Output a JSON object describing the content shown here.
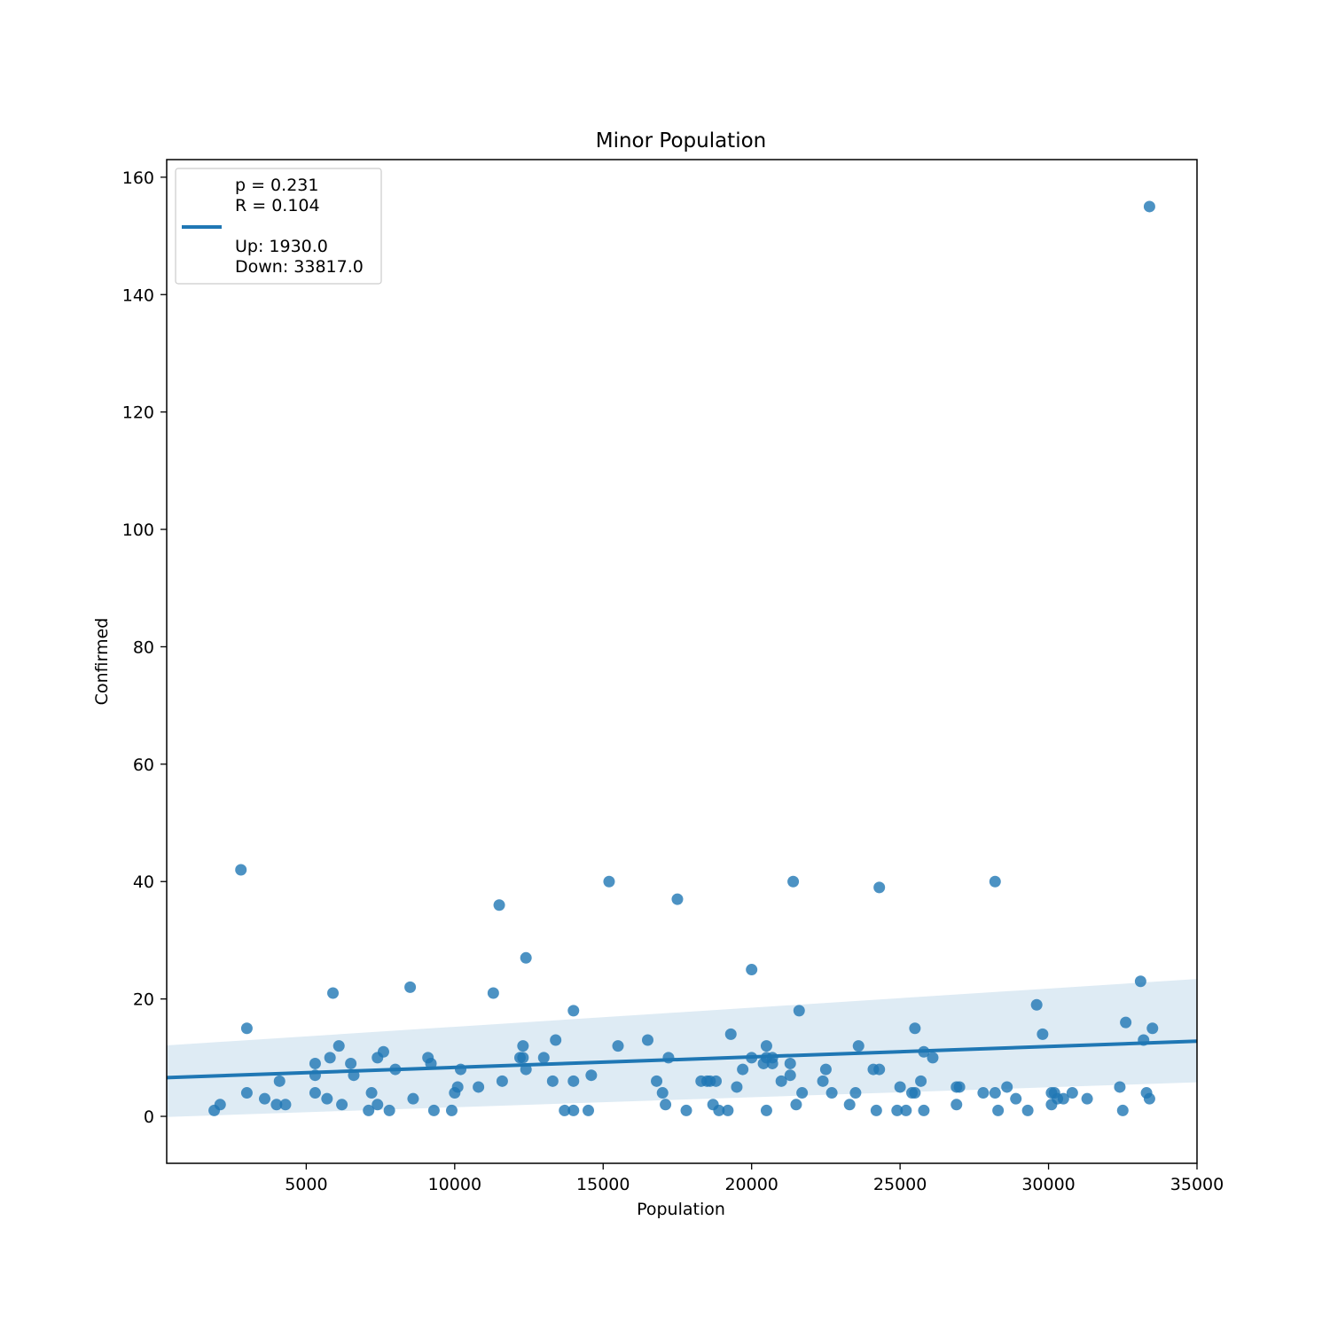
{
  "chart_data": {
    "type": "scatter",
    "title": "Minor Population",
    "xlabel": "Population",
    "ylabel": "Confirmed",
    "xlim": [
      300,
      35000
    ],
    "ylim": [
      -8,
      163
    ],
    "xticks": [
      5000,
      10000,
      15000,
      20000,
      25000,
      30000,
      35000
    ],
    "yticks": [
      0,
      20,
      40,
      60,
      80,
      100,
      120,
      140,
      160
    ],
    "grid": false,
    "legend": {
      "placement": "upper-left",
      "lines": [
        "p = 0.231",
        "R = 0.104",
        "",
        "Up: 1930.0",
        "Down: 33817.0"
      ]
    },
    "colors": {
      "points": "#1f77b4",
      "line": "#1f77b4",
      "band": "#1f77b4"
    },
    "regression": {
      "x": [
        300,
        35000
      ],
      "y": [
        6.6,
        12.8
      ]
    },
    "confidence_band": {
      "x": [
        300,
        35000
      ],
      "lower": [
        -0.1,
        5.8
      ],
      "upper": [
        12.1,
        23.4
      ]
    },
    "points": {
      "x": [
        1900,
        2100,
        2800,
        3000,
        3000,
        3600,
        4000,
        4100,
        4300,
        5300,
        5300,
        5300,
        5700,
        5800,
        5900,
        6100,
        6200,
        6500,
        6600,
        7100,
        7200,
        7400,
        7400,
        7600,
        7800,
        8000,
        8500,
        8600,
        9100,
        9200,
        9300,
        9900,
        10000,
        10100,
        10200,
        10800,
        11300,
        11500,
        11600,
        12200,
        12300,
        12300,
        12400,
        12400,
        13000,
        13300,
        13400,
        13700,
        14000,
        14000,
        14000,
        14500,
        14600,
        15200,
        15500,
        16500,
        16800,
        17000,
        17100,
        17200,
        17500,
        17800,
        18300,
        18500,
        18600,
        18700,
        18800,
        18900,
        19200,
        19300,
        19500,
        19700,
        20000,
        20000,
        20400,
        20500,
        20500,
        20500,
        20700,
        20700,
        21000,
        21300,
        21300,
        21400,
        21500,
        21600,
        21700,
        22400,
        22500,
        22700,
        23300,
        23500,
        23600,
        24100,
        24200,
        24300,
        24300,
        24900,
        25000,
        25200,
        25400,
        25500,
        25500,
        25700,
        25800,
        25800,
        26100,
        26900,
        26900,
        27000,
        27800,
        28200,
        28200,
        28300,
        28600,
        28900,
        29300,
        29600,
        29800,
        30100,
        30100,
        30200,
        30300,
        30500,
        30800,
        31300,
        32400,
        32500,
        32600,
        33100,
        33200,
        33300,
        33400,
        33400,
        33500
      ],
      "y": [
        1,
        2,
        42,
        4,
        15,
        3,
        2,
        6,
        2,
        4,
        7,
        9,
        3,
        10,
        21,
        12,
        2,
        9,
        7,
        1,
        4,
        10,
        2,
        11,
        1,
        8,
        22,
        3,
        10,
        9,
        1,
        1,
        4,
        5,
        8,
        5,
        21,
        36,
        6,
        10,
        10,
        12,
        8,
        27,
        10,
        6,
        13,
        1,
        1,
        6,
        18,
        1,
        7,
        40,
        12,
        13,
        6,
        4,
        2,
        10,
        37,
        1,
        6,
        6,
        6,
        2,
        6,
        1,
        1,
        14,
        5,
        8,
        25,
        10,
        9,
        12,
        1,
        10,
        9,
        10,
        6,
        7,
        9,
        40,
        2,
        18,
        4,
        6,
        8,
        4,
        2,
        4,
        12,
        8,
        1,
        8,
        39,
        1,
        5,
        1,
        4,
        4,
        15,
        6,
        1,
        11,
        10,
        5,
        2,
        5,
        4,
        40,
        4,
        1,
        5,
        3,
        1,
        19,
        14,
        4,
        2,
        4,
        3,
        3,
        4,
        3,
        5,
        1,
        16,
        23,
        13,
        4,
        3,
        155,
        15
      ]
    }
  }
}
